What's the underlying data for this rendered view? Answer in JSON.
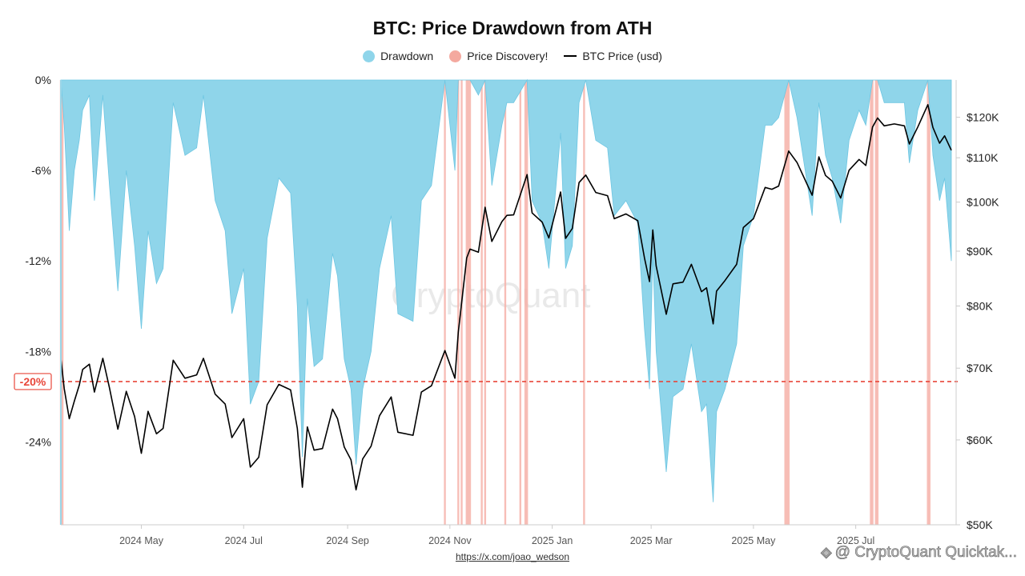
{
  "chart_data": {
    "type": "area",
    "title": "BTC: Price Drawdown from ATH",
    "legend": {
      "placement": "top-center",
      "entries": [
        {
          "key": "drawdown",
          "label": "Drawdown",
          "color": "#8fd5ea"
        },
        {
          "key": "discovery",
          "label": "Price Discovery!",
          "color": "#f4a99f"
        },
        {
          "key": "price",
          "label": "BTC Price (usd)",
          "color": "#000000"
        }
      ]
    },
    "x_range": [
      "2024-03-14",
      "2025-08-27"
    ],
    "x_ticks": [
      {
        "date": "2024-05-01",
        "label": "2024 May"
      },
      {
        "date": "2024-07-01",
        "label": "2024 Jul"
      },
      {
        "date": "2024-09-01",
        "label": "2024 Sep"
      },
      {
        "date": "2024-11-01",
        "label": "2024 Nov"
      },
      {
        "date": "2025-01-01",
        "label": "2025 Jan"
      },
      {
        "date": "2025-03-01",
        "label": "2025 Mar"
      },
      {
        "date": "2025-05-01",
        "label": "2025 May"
      },
      {
        "date": "2025-07-01",
        "label": "2025 Jul"
      }
    ],
    "y_left": {
      "scale": "linear",
      "unit": "%",
      "range": [
        -29.5,
        0
      ],
      "ticks": [
        {
          "value": 0,
          "label": "0%"
        },
        {
          "value": -6,
          "label": "-6%"
        },
        {
          "value": -12,
          "label": "-12%"
        },
        {
          "value": -18,
          "label": "-18%"
        },
        {
          "value": -24,
          "label": "-24%"
        }
      ]
    },
    "y_right": {
      "scale": "log",
      "unit": "usd",
      "range": [
        50000,
        130000
      ],
      "ticks": [
        {
          "value": 50000,
          "label": "$50K"
        },
        {
          "value": 60000,
          "label": "$60K"
        },
        {
          "value": 70000,
          "label": "$70K"
        },
        {
          "value": 80000,
          "label": "$80K"
        },
        {
          "value": 90000,
          "label": "$90K"
        },
        {
          "value": 100000,
          "label": "$100K"
        },
        {
          "value": 110000,
          "label": "$110K"
        },
        {
          "value": 120000,
          "label": "$120K"
        }
      ]
    },
    "threshold": {
      "value": -20,
      "label": "-20%",
      "color": "#e8473a"
    },
    "grid": false,
    "series": [
      {
        "name": "BTC Price (usd)",
        "key": "price",
        "axis": "right",
        "points": [
          [
            "2024-03-14",
            71500
          ],
          [
            "2024-03-16",
            67000
          ],
          [
            "2024-03-19",
            62800
          ],
          [
            "2024-03-22",
            65200
          ],
          [
            "2024-03-25",
            67500
          ],
          [
            "2024-03-27",
            69800
          ],
          [
            "2024-03-31",
            70600
          ],
          [
            "2024-04-03",
            66500
          ],
          [
            "2024-04-08",
            71500
          ],
          [
            "2024-04-12",
            67100
          ],
          [
            "2024-04-17",
            61400
          ],
          [
            "2024-04-22",
            66600
          ],
          [
            "2024-04-27",
            63100
          ],
          [
            "2024-05-01",
            58300
          ],
          [
            "2024-05-05",
            63800
          ],
          [
            "2024-05-10",
            60800
          ],
          [
            "2024-05-14",
            61500
          ],
          [
            "2024-05-20",
            71200
          ],
          [
            "2024-05-27",
            68500
          ],
          [
            "2024-06-03",
            69000
          ],
          [
            "2024-06-07",
            71500
          ],
          [
            "2024-06-14",
            66200
          ],
          [
            "2024-06-20",
            64800
          ],
          [
            "2024-06-24",
            60300
          ],
          [
            "2024-07-01",
            62800
          ],
          [
            "2024-07-05",
            56600
          ],
          [
            "2024-07-10",
            57800
          ],
          [
            "2024-07-15",
            64700
          ],
          [
            "2024-07-22",
            67600
          ],
          [
            "2024-07-29",
            66800
          ],
          [
            "2024-08-02",
            61500
          ],
          [
            "2024-08-05",
            54200
          ],
          [
            "2024-08-08",
            61700
          ],
          [
            "2024-08-12",
            58700
          ],
          [
            "2024-08-17",
            58900
          ],
          [
            "2024-08-23",
            64100
          ],
          [
            "2024-08-26",
            62800
          ],
          [
            "2024-08-30",
            59100
          ],
          [
            "2024-09-03",
            57500
          ],
          [
            "2024-09-06",
            53900
          ],
          [
            "2024-09-10",
            57600
          ],
          [
            "2024-09-15",
            59200
          ],
          [
            "2024-09-20",
            63200
          ],
          [
            "2024-09-27",
            65800
          ],
          [
            "2024-10-01",
            61000
          ],
          [
            "2024-10-10",
            60600
          ],
          [
            "2024-10-15",
            66500
          ],
          [
            "2024-10-21",
            67400
          ],
          [
            "2024-10-29",
            72700
          ],
          [
            "2024-11-04",
            68500
          ],
          [
            "2024-11-06",
            75600
          ],
          [
            "2024-11-11",
            88700
          ],
          [
            "2024-11-13",
            90400
          ],
          [
            "2024-11-18",
            89800
          ],
          [
            "2024-11-22",
            98900
          ],
          [
            "2024-11-26",
            91900
          ],
          [
            "2024-12-02",
            95900
          ],
          [
            "2024-12-05",
            97200
          ],
          [
            "2024-12-09",
            97300
          ],
          [
            "2024-12-17",
            106100
          ],
          [
            "2024-12-20",
            97700
          ],
          [
            "2024-12-26",
            95800
          ],
          [
            "2024-12-30",
            92600
          ],
          [
            "2025-01-06",
            102200
          ],
          [
            "2025-01-09",
            92500
          ],
          [
            "2025-01-13",
            94500
          ],
          [
            "2025-01-17",
            104300
          ],
          [
            "2025-01-21",
            106000
          ],
          [
            "2025-01-27",
            102100
          ],
          [
            "2025-02-03",
            101400
          ],
          [
            "2025-02-07",
            96500
          ],
          [
            "2025-02-14",
            97500
          ],
          [
            "2025-02-21",
            96100
          ],
          [
            "2025-02-25",
            88700
          ],
          [
            "2025-02-28",
            84300
          ],
          [
            "2025-03-02",
            94200
          ],
          [
            "2025-03-04",
            87200
          ],
          [
            "2025-03-10",
            78600
          ],
          [
            "2025-03-14",
            83900
          ],
          [
            "2025-03-20",
            84200
          ],
          [
            "2025-03-25",
            87500
          ],
          [
            "2025-03-31",
            82500
          ],
          [
            "2025-04-03",
            83200
          ],
          [
            "2025-04-07",
            77000
          ],
          [
            "2025-04-09",
            82600
          ],
          [
            "2025-04-14",
            84500
          ],
          [
            "2025-04-21",
            87500
          ],
          [
            "2025-04-25",
            94700
          ],
          [
            "2025-05-01",
            96500
          ],
          [
            "2025-05-08",
            103200
          ],
          [
            "2025-05-12",
            102800
          ],
          [
            "2025-05-16",
            103500
          ],
          [
            "2025-05-22",
            111600
          ],
          [
            "2025-05-27",
            108900
          ],
          [
            "2025-06-05",
            101500
          ],
          [
            "2025-06-09",
            110200
          ],
          [
            "2025-06-13",
            105900
          ],
          [
            "2025-06-17",
            104600
          ],
          [
            "2025-06-22",
            100900
          ],
          [
            "2025-06-27",
            107100
          ],
          [
            "2025-07-03",
            109600
          ],
          [
            "2025-07-07",
            108200
          ],
          [
            "2025-07-11",
            117500
          ],
          [
            "2025-07-14",
            119800
          ],
          [
            "2025-07-18",
            117800
          ],
          [
            "2025-07-24",
            118300
          ],
          [
            "2025-07-30",
            117800
          ],
          [
            "2025-08-02",
            113300
          ],
          [
            "2025-08-07",
            117500
          ],
          [
            "2025-08-13",
            123300
          ],
          [
            "2025-08-16",
            117400
          ],
          [
            "2025-08-20",
            113500
          ],
          [
            "2025-08-23",
            115300
          ],
          [
            "2025-08-27",
            111800
          ]
        ]
      },
      {
        "name": "Drawdown",
        "key": "drawdown",
        "axis": "left",
        "points": [
          [
            "2024-03-14",
            0
          ],
          [
            "2024-03-16",
            -3
          ],
          [
            "2024-03-19",
            -10
          ],
          [
            "2024-03-22",
            -6
          ],
          [
            "2024-03-25",
            -4
          ],
          [
            "2024-03-27",
            -2
          ],
          [
            "2024-03-31",
            -1
          ],
          [
            "2024-04-03",
            -8
          ],
          [
            "2024-04-08",
            -1
          ],
          [
            "2024-04-12",
            -7
          ],
          [
            "2024-04-17",
            -14
          ],
          [
            "2024-04-22",
            -6
          ],
          [
            "2024-04-27",
            -11
          ],
          [
            "2024-05-01",
            -16.5
          ],
          [
            "2024-05-05",
            -10
          ],
          [
            "2024-05-10",
            -13.5
          ],
          [
            "2024-05-14",
            -12.5
          ],
          [
            "2024-05-20",
            -1.5
          ],
          [
            "2024-05-27",
            -5
          ],
          [
            "2024-06-03",
            -4.5
          ],
          [
            "2024-06-07",
            -1
          ],
          [
            "2024-06-14",
            -8
          ],
          [
            "2024-06-20",
            -10
          ],
          [
            "2024-06-24",
            -15.5
          ],
          [
            "2024-07-01",
            -12.5
          ],
          [
            "2024-07-05",
            -21.5
          ],
          [
            "2024-07-10",
            -20
          ],
          [
            "2024-07-15",
            -10.5
          ],
          [
            "2024-07-22",
            -6.5
          ],
          [
            "2024-07-29",
            -7.5
          ],
          [
            "2024-08-02",
            -15
          ],
          [
            "2024-08-05",
            -25
          ],
          [
            "2024-08-08",
            -14.5
          ],
          [
            "2024-08-12",
            -19
          ],
          [
            "2024-08-17",
            -18.5
          ],
          [
            "2024-08-23",
            -11.5
          ],
          [
            "2024-08-26",
            -13
          ],
          [
            "2024-08-30",
            -18.5
          ],
          [
            "2024-09-03",
            -20.5
          ],
          [
            "2024-09-06",
            -25.5
          ],
          [
            "2024-09-10",
            -20.5
          ],
          [
            "2024-09-15",
            -18
          ],
          [
            "2024-09-20",
            -12.5
          ],
          [
            "2024-09-27",
            -9
          ],
          [
            "2024-10-01",
            -15.5
          ],
          [
            "2024-10-10",
            -16
          ],
          [
            "2024-10-15",
            -8
          ],
          [
            "2024-10-21",
            -7
          ],
          [
            "2024-10-29",
            0
          ],
          [
            "2024-11-04",
            -6
          ],
          [
            "2024-11-06",
            0
          ],
          [
            "2024-11-11",
            0
          ],
          [
            "2024-11-13",
            0
          ],
          [
            "2024-11-18",
            -1
          ],
          [
            "2024-11-22",
            0
          ],
          [
            "2024-11-26",
            -7
          ],
          [
            "2024-12-02",
            -3
          ],
          [
            "2024-12-05",
            -1.5
          ],
          [
            "2024-12-09",
            -1.5
          ],
          [
            "2024-12-17",
            0
          ],
          [
            "2024-12-20",
            -8
          ],
          [
            "2024-12-26",
            -9.5
          ],
          [
            "2024-12-30",
            -12.5
          ],
          [
            "2025-01-06",
            -3.5
          ],
          [
            "2025-01-09",
            -12.5
          ],
          [
            "2025-01-13",
            -11
          ],
          [
            "2025-01-17",
            -1.5
          ],
          [
            "2025-01-21",
            0
          ],
          [
            "2025-01-27",
            -4
          ],
          [
            "2025-02-03",
            -4.5
          ],
          [
            "2025-02-07",
            -9
          ],
          [
            "2025-02-14",
            -8
          ],
          [
            "2025-02-21",
            -9.5
          ],
          [
            "2025-02-25",
            -16.5
          ],
          [
            "2025-02-28",
            -20.5
          ],
          [
            "2025-03-02",
            -11.5
          ],
          [
            "2025-03-04",
            -18
          ],
          [
            "2025-03-10",
            -26
          ],
          [
            "2025-03-14",
            -21
          ],
          [
            "2025-03-20",
            -20.5
          ],
          [
            "2025-03-25",
            -17.5
          ],
          [
            "2025-03-31",
            -22
          ],
          [
            "2025-04-03",
            -21.5
          ],
          [
            "2025-04-07",
            -28
          ],
          [
            "2025-04-09",
            -22
          ],
          [
            "2025-04-14",
            -20.5
          ],
          [
            "2025-04-21",
            -17.5
          ],
          [
            "2025-04-25",
            -11
          ],
          [
            "2025-05-01",
            -9
          ],
          [
            "2025-05-08",
            -3
          ],
          [
            "2025-05-12",
            -3
          ],
          [
            "2025-05-16",
            -2.5
          ],
          [
            "2025-05-22",
            0
          ],
          [
            "2025-05-27",
            -2.5
          ],
          [
            "2025-06-05",
            -9
          ],
          [
            "2025-06-09",
            -1.5
          ],
          [
            "2025-06-13",
            -5
          ],
          [
            "2025-06-17",
            -6.5
          ],
          [
            "2025-06-22",
            -9.5
          ],
          [
            "2025-06-27",
            -4
          ],
          [
            "2025-07-03",
            -2
          ],
          [
            "2025-07-07",
            -3
          ],
          [
            "2025-07-11",
            0
          ],
          [
            "2025-07-14",
            0
          ],
          [
            "2025-07-18",
            -1.5
          ],
          [
            "2025-07-24",
            -1.5
          ],
          [
            "2025-07-30",
            -1.5
          ],
          [
            "2025-08-02",
            -5.5
          ],
          [
            "2025-08-07",
            -2
          ],
          [
            "2025-08-13",
            0
          ],
          [
            "2025-08-16",
            -5
          ],
          [
            "2025-08-20",
            -8
          ],
          [
            "2025-08-23",
            -6.5
          ],
          [
            "2025-08-27",
            -12
          ]
        ]
      }
    ],
    "price_discovery_dates": [
      "2024-03-14",
      "2024-03-15",
      "2024-10-29",
      "2024-11-06",
      "2024-11-08",
      "2024-11-11",
      "2024-11-12",
      "2024-11-13",
      "2024-11-20",
      "2024-11-22",
      "2024-12-04",
      "2024-12-13",
      "2024-12-16",
      "2024-12-17",
      "2025-01-20",
      "2025-05-20",
      "2025-05-21",
      "2025-05-22",
      "2025-07-10",
      "2025-07-11",
      "2025-07-13",
      "2025-07-14",
      "2025-08-13",
      "2025-08-14"
    ],
    "watermark": "CryptoQuant"
  },
  "footer": {
    "source_link": "https://x.com/joao_wedson",
    "credit": "@ CryptoQuant Quicktak..."
  }
}
